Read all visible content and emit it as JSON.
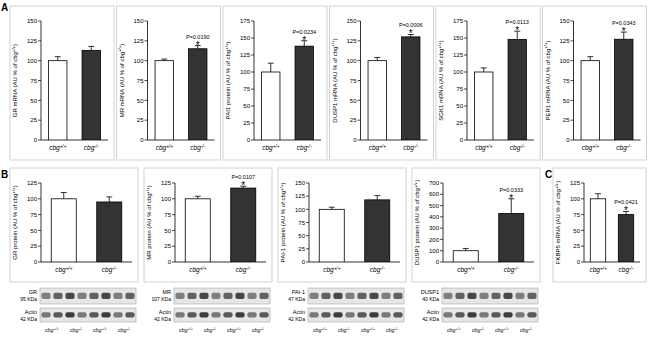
{
  "panel_labels": [
    "A",
    "B",
    "C"
  ],
  "chart_data": [
    {
      "type": "bar",
      "y_label": "GR mRNA (AU % of cbg+/+)",
      "categories": [
        "cbg+/+",
        "cbg-/-"
      ],
      "values": [
        100,
        113
      ],
      "errors": [
        5,
        5
      ],
      "colors": [
        "#ffffff",
        "#333333"
      ],
      "ylim": [
        0,
        150
      ],
      "yticks": [
        0,
        25,
        50,
        75,
        100,
        125,
        150
      ]
    },
    {
      "type": "bar",
      "y_label": "MR mRNA (AU % of cbg+/+)",
      "categories": [
        "cbg+/+",
        "cbg-/-"
      ],
      "values": [
        100,
        115
      ],
      "errors": [
        2,
        4
      ],
      "colors": [
        "#ffffff",
        "#333333"
      ],
      "ylim": [
        0,
        150
      ],
      "yticks": [
        0,
        25,
        50,
        75,
        100,
        125,
        150
      ],
      "significance": "*",
      "p_value": "P=0.0190"
    },
    {
      "type": "bar",
      "y_label": "PAI1 protein (AU % of cbg+/+)",
      "categories": [
        "cbg+/+",
        "cbg-/-"
      ],
      "values": [
        100,
        138
      ],
      "errors": [
        13,
        8
      ],
      "colors": [
        "#ffffff",
        "#333333"
      ],
      "ylim": [
        0,
        175
      ],
      "yticks": [
        0,
        25,
        50,
        75,
        100,
        125,
        150,
        175
      ],
      "significance": "*",
      "p_value": "P=0.0234"
    },
    {
      "type": "bar",
      "y_label": "DUSP1 mRNA (AU % of cbg+/+)",
      "categories": [
        "cbg+/+",
        "cbg-/-"
      ],
      "values": [
        100,
        130
      ],
      "errors": [
        4,
        3
      ],
      "colors": [
        "#ffffff",
        "#333333"
      ],
      "ylim": [
        0,
        150
      ],
      "yticks": [
        0,
        25,
        50,
        75,
        100,
        125,
        150
      ],
      "significance": "*",
      "p_value": "P=0.0006"
    },
    {
      "type": "bar",
      "y_label": "SGK1 mRNA (AU % of cbg+/+)",
      "categories": [
        "cbg+/+",
        "cbg-/-"
      ],
      "values": [
        100,
        148
      ],
      "errors": [
        6,
        12
      ],
      "colors": [
        "#ffffff",
        "#333333"
      ],
      "ylim": [
        0,
        175
      ],
      "yticks": [
        0,
        25,
        50,
        75,
        100,
        125,
        150,
        175
      ],
      "significance": "*",
      "p_value": "P=0.0113"
    },
    {
      "type": "bar",
      "y_label": "PER1 mRNA (AU % of cbg+/+)",
      "categories": [
        "cbg+/+",
        "cbg-/-"
      ],
      "values": [
        100,
        127
      ],
      "errors": [
        5,
        9
      ],
      "colors": [
        "#ffffff",
        "#333333"
      ],
      "ylim": [
        0,
        150
      ],
      "yticks": [
        0,
        25,
        50,
        75,
        100,
        125,
        150
      ],
      "significance": "*",
      "p_value": "P=0.0343"
    },
    {
      "type": "bar",
      "y_label": "GR protein (AU % of cbg+/+)",
      "categories": [
        "cbg+/+",
        "cbg-/-"
      ],
      "values": [
        100,
        95
      ],
      "errors": [
        10,
        8
      ],
      "colors": [
        "#ffffff",
        "#333333"
      ],
      "ylim": [
        0,
        125
      ],
      "yticks": [
        0,
        25,
        50,
        75,
        100,
        125
      ]
    },
    {
      "type": "bar",
      "y_label": "MR protein (AU % of cbg+/+)",
      "categories": [
        "cbg+/+",
        "cbg-/-"
      ],
      "values": [
        100,
        117
      ],
      "errors": [
        4,
        3
      ],
      "colors": [
        "#ffffff",
        "#333333"
      ],
      "ylim": [
        0,
        125
      ],
      "yticks": [
        0,
        25,
        50,
        75,
        100,
        125
      ],
      "significance": "*",
      "p_value": "P=0.0107"
    },
    {
      "type": "bar",
      "y_label": "PAI-1 protein (AU % of cbg+/+)",
      "categories": [
        "cbg+/+",
        "cbg-/-"
      ],
      "values": [
        100,
        118
      ],
      "errors": [
        4,
        8
      ],
      "colors": [
        "#ffffff",
        "#333333"
      ],
      "ylim": [
        0,
        150
      ],
      "yticks": [
        0,
        25,
        50,
        75,
        100,
        125,
        150
      ]
    },
    {
      "type": "bar",
      "y_label": "DUSP1 protein (AU % of cbg+/+)",
      "categories": [
        "cbg+/+",
        "cbg-/-"
      ],
      "values": [
        100,
        430
      ],
      "errors": [
        20,
        130
      ],
      "colors": [
        "#ffffff",
        "#333333"
      ],
      "ylim": [
        0,
        700
      ],
      "yticks": [
        0,
        100,
        200,
        300,
        400,
        500,
        600,
        700
      ],
      "significance": "*",
      "p_value": "P=0.0333"
    },
    {
      "type": "bar",
      "y_label": "FKBP5 mRNA (AU % of cbg+/+)",
      "categories": [
        "cbg+/+",
        "cbg-/-"
      ],
      "values": [
        100,
        75
      ],
      "errors": [
        8,
        5
      ],
      "colors": [
        "#ffffff",
        "#333333"
      ],
      "ylim": [
        0,
        125
      ],
      "yticks": [
        0,
        25,
        50,
        75,
        100,
        125
      ],
      "significance": "*",
      "p_value": "P=0.0421"
    }
  ],
  "blots": [
    {
      "target": "GR",
      "target_kda": "95 KDa",
      "control": "Actin",
      "control_kda": "42 KDa",
      "lanes": [
        "cbg+/+",
        "cbg-/-",
        "cbg+/+",
        "cbg-/-"
      ]
    },
    {
      "target": "MR",
      "target_kda": "107 KDa",
      "control": "Actin",
      "control_kda": "42 KDa",
      "lanes": [
        "cbg+/+",
        "cbg-/-",
        "cbg+/+",
        "cbg-/-"
      ]
    },
    {
      "target": "PAI-1",
      "target_kda": "47 KDa",
      "control": "Actin",
      "control_kda": "42 KDa",
      "lanes": [
        "cbg+/+",
        "cbg-/-",
        "cbg+/+",
        "cbg-/-"
      ]
    },
    {
      "target": "DUSP1",
      "target_kda": "40 KDa",
      "control": "Actin",
      "control_kda": "42 KDa",
      "lanes": [
        "cbg+/+",
        "cbg-/-",
        "cbg+/+",
        "cbg-/-"
      ]
    }
  ]
}
